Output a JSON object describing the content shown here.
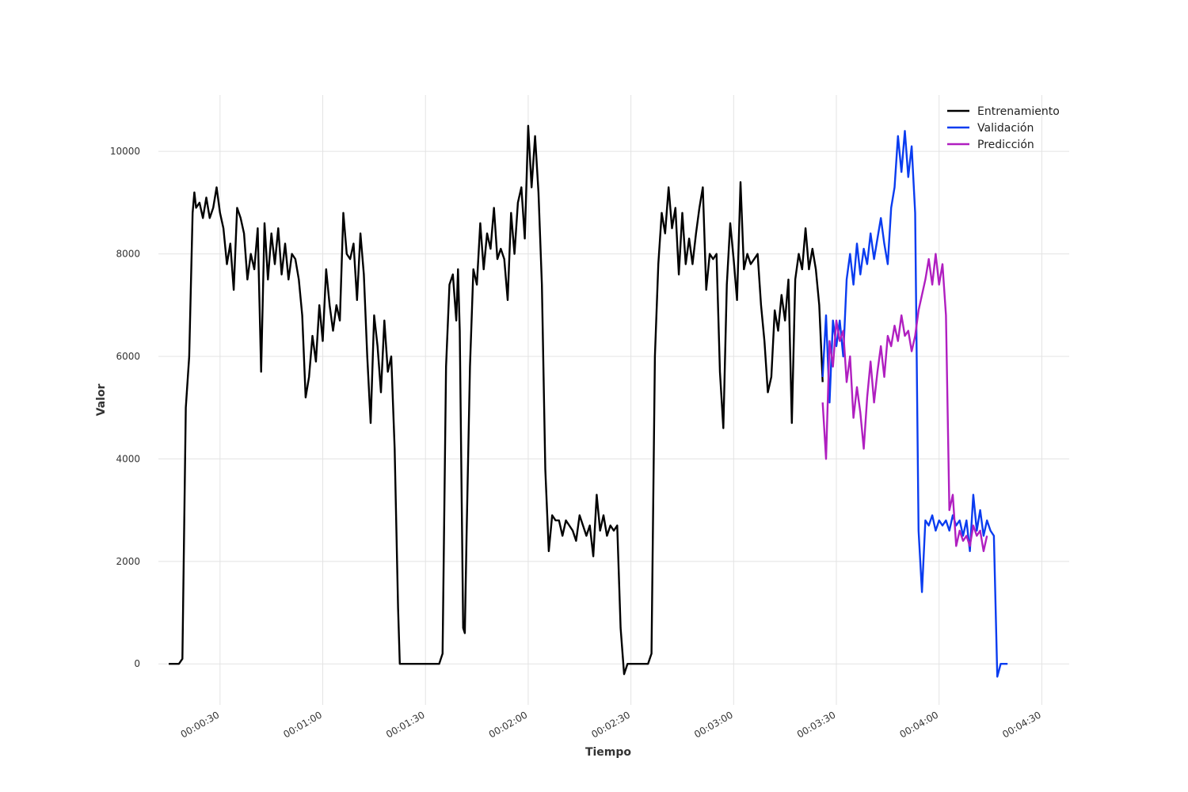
{
  "chart_data": {
    "type": "line",
    "xlabel": "Tiempo",
    "ylabel": "Valor",
    "x_unit": "seconds",
    "xlim": [
      12,
      278
    ],
    "ylim": [
      -800,
      11100
    ],
    "x_ticks": [
      {
        "value": 30,
        "label": "00:00:30"
      },
      {
        "value": 60,
        "label": "00:01:00"
      },
      {
        "value": 90,
        "label": "00:01:30"
      },
      {
        "value": 120,
        "label": "00:02:00"
      },
      {
        "value": 150,
        "label": "00:02:30"
      },
      {
        "value": 180,
        "label": "00:03:00"
      },
      {
        "value": 210,
        "label": "00:03:30"
      },
      {
        "value": 240,
        "label": "00:04:00"
      },
      {
        "value": 270,
        "label": "00:04:30"
      }
    ],
    "y_ticks": [
      0,
      2000,
      4000,
      6000,
      8000,
      10000
    ],
    "grid": true,
    "legend_position": "top-right",
    "series": [
      {
        "name": "Entrenamiento",
        "color": "#000000",
        "points": [
          [
            15,
            0
          ],
          [
            18,
            0
          ],
          [
            19,
            100
          ],
          [
            20,
            5000
          ],
          [
            21,
            6000
          ],
          [
            22,
            8800
          ],
          [
            22.5,
            9200
          ],
          [
            23,
            8900
          ],
          [
            24,
            9000
          ],
          [
            25,
            8700
          ],
          [
            26,
            9100
          ],
          [
            27,
            8700
          ],
          [
            28,
            8900
          ],
          [
            29,
            9300
          ],
          [
            30,
            8800
          ],
          [
            31,
            8500
          ],
          [
            32,
            7800
          ],
          [
            33,
            8200
          ],
          [
            34,
            7300
          ],
          [
            35,
            8900
          ],
          [
            36,
            8700
          ],
          [
            37,
            8400
          ],
          [
            38,
            7500
          ],
          [
            39,
            8000
          ],
          [
            40,
            7700
          ],
          [
            41,
            8500
          ],
          [
            42,
            5700
          ],
          [
            43,
            8600
          ],
          [
            44,
            7500
          ],
          [
            45,
            8400
          ],
          [
            46,
            7800
          ],
          [
            47,
            8500
          ],
          [
            48,
            7600
          ],
          [
            49,
            8200
          ],
          [
            50,
            7500
          ],
          [
            51,
            8000
          ],
          [
            52,
            7900
          ],
          [
            53,
            7500
          ],
          [
            54,
            6800
          ],
          [
            55,
            5200
          ],
          [
            56,
            5600
          ],
          [
            57,
            6400
          ],
          [
            58,
            5900
          ],
          [
            59,
            7000
          ],
          [
            60,
            6300
          ],
          [
            61,
            7700
          ],
          [
            62,
            7000
          ],
          [
            63,
            6500
          ],
          [
            64,
            7000
          ],
          [
            65,
            6700
          ],
          [
            66,
            8800
          ],
          [
            67,
            8000
          ],
          [
            68,
            7900
          ],
          [
            69,
            8200
          ],
          [
            70,
            7100
          ],
          [
            71,
            8400
          ],
          [
            72,
            7600
          ],
          [
            73,
            6000
          ],
          [
            74,
            4700
          ],
          [
            75,
            6800
          ],
          [
            76,
            6200
          ],
          [
            77,
            5300
          ],
          [
            78,
            6700
          ],
          [
            79,
            5700
          ],
          [
            80,
            6000
          ],
          [
            81,
            4200
          ],
          [
            82,
            1100
          ],
          [
            82.5,
            0
          ],
          [
            90,
            0
          ],
          [
            94,
            0
          ],
          [
            95,
            200
          ],
          [
            96,
            5800
          ],
          [
            97,
            7400
          ],
          [
            98,
            7600
          ],
          [
            99,
            6700
          ],
          [
            99.5,
            7700
          ],
          [
            100,
            6500
          ],
          [
            101,
            700
          ],
          [
            101.5,
            600
          ],
          [
            102,
            2500
          ],
          [
            103,
            5800
          ],
          [
            104,
            7700
          ],
          [
            105,
            7400
          ],
          [
            106,
            8600
          ],
          [
            107,
            7700
          ],
          [
            108,
            8400
          ],
          [
            109,
            8100
          ],
          [
            110,
            8900
          ],
          [
            111,
            7900
          ],
          [
            112,
            8100
          ],
          [
            113,
            7900
          ],
          [
            114,
            7100
          ],
          [
            115,
            8800
          ],
          [
            116,
            8000
          ],
          [
            117,
            9000
          ],
          [
            118,
            9300
          ],
          [
            119,
            8300
          ],
          [
            120,
            10500
          ],
          [
            121,
            9300
          ],
          [
            122,
            10300
          ],
          [
            123,
            9200
          ],
          [
            124,
            7400
          ],
          [
            125,
            3800
          ],
          [
            126,
            2200
          ],
          [
            127,
            2900
          ],
          [
            128,
            2800
          ],
          [
            129,
            2800
          ],
          [
            130,
            2500
          ],
          [
            131,
            2800
          ],
          [
            132,
            2700
          ],
          [
            133,
            2600
          ],
          [
            134,
            2400
          ],
          [
            135,
            2900
          ],
          [
            136,
            2700
          ],
          [
            137,
            2500
          ],
          [
            138,
            2700
          ],
          [
            139,
            2100
          ],
          [
            140,
            3300
          ],
          [
            141,
            2600
          ],
          [
            142,
            2900
          ],
          [
            143,
            2500
          ],
          [
            144,
            2700
          ],
          [
            145,
            2600
          ],
          [
            146,
            2700
          ],
          [
            147,
            700
          ],
          [
            148,
            -200
          ],
          [
            149,
            0
          ],
          [
            155,
            0
          ],
          [
            156,
            200
          ],
          [
            157,
            6000
          ],
          [
            158,
            7800
          ],
          [
            159,
            8800
          ],
          [
            160,
            8400
          ],
          [
            161,
            9300
          ],
          [
            162,
            8500
          ],
          [
            163,
            8900
          ],
          [
            164,
            7600
          ],
          [
            165,
            8800
          ],
          [
            166,
            7800
          ],
          [
            167,
            8300
          ],
          [
            168,
            7800
          ],
          [
            169,
            8400
          ],
          [
            170,
            8900
          ],
          [
            171,
            9300
          ],
          [
            172,
            7300
          ],
          [
            173,
            8000
          ],
          [
            174,
            7900
          ],
          [
            175,
            8000
          ],
          [
            176,
            5700
          ],
          [
            177,
            4600
          ],
          [
            178,
            7400
          ],
          [
            179,
            8600
          ],
          [
            180,
            7900
          ],
          [
            181,
            7100
          ],
          [
            182,
            9400
          ],
          [
            183,
            7700
          ],
          [
            184,
            8000
          ],
          [
            185,
            7800
          ],
          [
            186,
            7900
          ],
          [
            187,
            8000
          ],
          [
            188,
            7000
          ],
          [
            189,
            6300
          ],
          [
            190,
            5300
          ],
          [
            191,
            5600
          ],
          [
            192,
            6900
          ],
          [
            193,
            6500
          ],
          [
            194,
            7200
          ],
          [
            195,
            6700
          ],
          [
            196,
            7500
          ],
          [
            197,
            4700
          ],
          [
            198,
            7500
          ],
          [
            199,
            8000
          ],
          [
            200,
            7700
          ],
          [
            201,
            8500
          ],
          [
            202,
            7700
          ],
          [
            203,
            8100
          ],
          [
            204,
            7700
          ],
          [
            205,
            7000
          ],
          [
            206,
            5500
          ]
        ]
      },
      {
        "name": "Validación",
        "color": "#0a3cf0",
        "points": [
          [
            206,
            5600
          ],
          [
            207,
            6800
          ],
          [
            208,
            5100
          ],
          [
            209,
            6700
          ],
          [
            210,
            6200
          ],
          [
            211,
            6700
          ],
          [
            212,
            6000
          ],
          [
            213,
            7500
          ],
          [
            214,
            8000
          ],
          [
            215,
            7400
          ],
          [
            216,
            8200
          ],
          [
            217,
            7600
          ],
          [
            218,
            8100
          ],
          [
            219,
            7800
          ],
          [
            220,
            8400
          ],
          [
            221,
            7900
          ],
          [
            222,
            8300
          ],
          [
            223,
            8700
          ],
          [
            224,
            8200
          ],
          [
            225,
            7800
          ],
          [
            226,
            8900
          ],
          [
            227,
            9300
          ],
          [
            228,
            10300
          ],
          [
            229,
            9600
          ],
          [
            230,
            10400
          ],
          [
            231,
            9500
          ],
          [
            232,
            10100
          ],
          [
            233,
            8800
          ],
          [
            234,
            2600
          ],
          [
            235,
            1400
          ],
          [
            236,
            2800
          ],
          [
            237,
            2700
          ],
          [
            238,
            2900
          ],
          [
            239,
            2600
          ],
          [
            240,
            2800
          ],
          [
            241,
            2700
          ],
          [
            242,
            2800
          ],
          [
            243,
            2600
          ],
          [
            244,
            2900
          ],
          [
            245,
            2700
          ],
          [
            246,
            2800
          ],
          [
            247,
            2500
          ],
          [
            248,
            2800
          ],
          [
            249,
            2200
          ],
          [
            250,
            3300
          ],
          [
            251,
            2600
          ],
          [
            252,
            3000
          ],
          [
            253,
            2500
          ],
          [
            254,
            2800
          ],
          [
            255,
            2600
          ],
          [
            256,
            2500
          ],
          [
            257,
            -250
          ],
          [
            258,
            0
          ],
          [
            260,
            0
          ]
        ]
      },
      {
        "name": "Predicción",
        "color": "#b01fc0",
        "points": [
          [
            206,
            5100
          ],
          [
            207,
            4000
          ],
          [
            208,
            6300
          ],
          [
            209,
            5800
          ],
          [
            210,
            6700
          ],
          [
            211,
            6300
          ],
          [
            212,
            6500
          ],
          [
            213,
            5500
          ],
          [
            214,
            6000
          ],
          [
            215,
            4800
          ],
          [
            216,
            5400
          ],
          [
            217,
            4900
          ],
          [
            218,
            4200
          ],
          [
            219,
            5200
          ],
          [
            220,
            5900
          ],
          [
            221,
            5100
          ],
          [
            222,
            5700
          ],
          [
            223,
            6200
          ],
          [
            224,
            5600
          ],
          [
            225,
            6400
          ],
          [
            226,
            6200
          ],
          [
            227,
            6600
          ],
          [
            228,
            6300
          ],
          [
            229,
            6800
          ],
          [
            230,
            6400
          ],
          [
            231,
            6500
          ],
          [
            232,
            6100
          ],
          [
            233,
            6400
          ],
          [
            234,
            6900
          ],
          [
            235,
            7200
          ],
          [
            236,
            7500
          ],
          [
            237,
            7900
          ],
          [
            238,
            7400
          ],
          [
            239,
            8000
          ],
          [
            240,
            7400
          ],
          [
            241,
            7800
          ],
          [
            242,
            6800
          ],
          [
            243,
            3000
          ],
          [
            244,
            3300
          ],
          [
            245,
            2300
          ],
          [
            246,
            2600
          ],
          [
            247,
            2400
          ],
          [
            248,
            2500
          ],
          [
            249,
            2300
          ],
          [
            250,
            2700
          ],
          [
            251,
            2500
          ],
          [
            252,
            2600
          ],
          [
            253,
            2200
          ],
          [
            254,
            2500
          ]
        ]
      }
    ]
  }
}
